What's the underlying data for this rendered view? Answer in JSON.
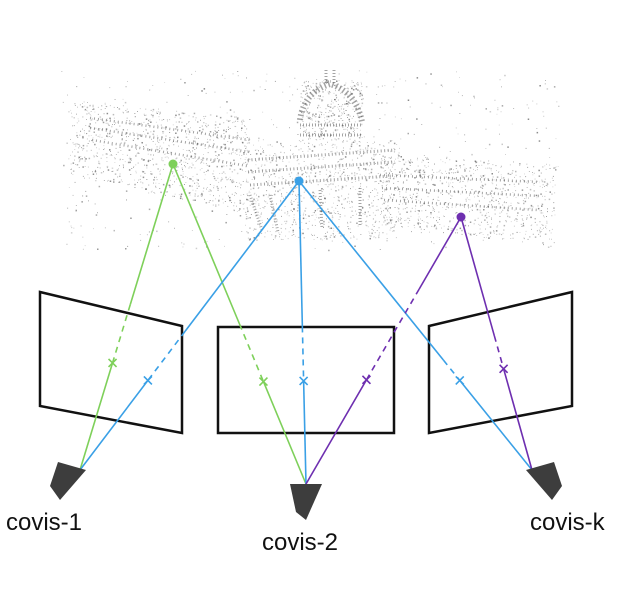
{
  "colors": {
    "green": "#7ed05a",
    "blue": "#3aa0e6",
    "purple": "#6e2fb0",
    "frame": "#111111",
    "camera": "#3d3d3d",
    "point_cloud": "#6a6a6a"
  },
  "cameras": [
    {
      "label": "covis-1"
    },
    {
      "label": "covis-2"
    },
    {
      "label": "covis-k"
    }
  ]
}
